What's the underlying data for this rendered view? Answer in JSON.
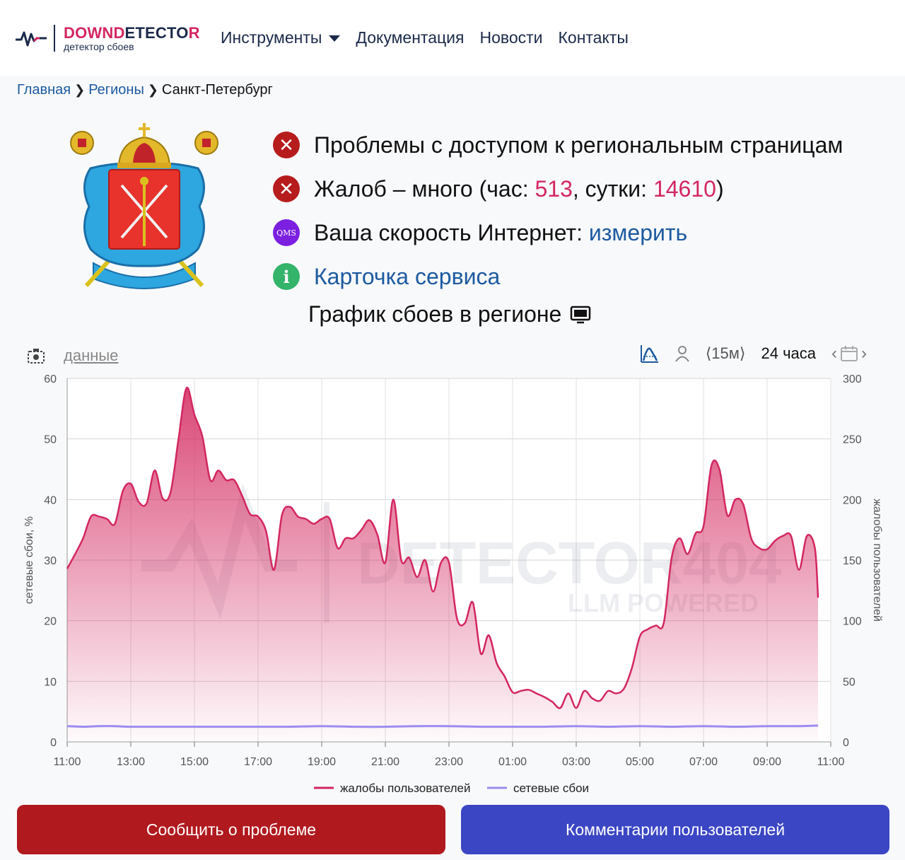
{
  "header": {
    "logo_down": "DOWN",
    "logo_d": "D",
    "logo_etecto": "ETECTO",
    "logo_r": "R",
    "logo_subtitle": "детектор сбоев",
    "nav": [
      "Инструменты",
      "Документация",
      "Новости",
      "Контакты"
    ]
  },
  "breadcrumb": [
    "Главная",
    "Регионы",
    "Санкт-Петербург"
  ],
  "status": {
    "access": "Проблемы с доступом к региональным страницам",
    "complaints_prefix": "Жалоб – много (час: ",
    "complaints_hour": "513",
    "complaints_mid": ", сутки: ",
    "complaints_day": "14610",
    "complaints_suffix": ")",
    "speed_label": "Ваша скорость Интернет: ",
    "speed_link": "измерить",
    "qms": "QMS",
    "info_icon": "i",
    "service_card": "Карточка сервиса"
  },
  "chart_section": {
    "title": "График сбоев в регионе",
    "data_link": "данные",
    "interval": "⟨15м⟩",
    "period": "24 часа"
  },
  "chart_data": {
    "type": "area",
    "x_ticks": [
      "11:00",
      "13:00",
      "15:00",
      "17:00",
      "19:00",
      "21:00",
      "23:00",
      "01:00",
      "03:00",
      "05:00",
      "07:00",
      "09:00",
      "11:00"
    ],
    "y_left_label": "сетевые сбои, %",
    "y_left_ticks": [
      0,
      10,
      20,
      30,
      40,
      50,
      60
    ],
    "y_right_label": "жалобы пользователей",
    "y_right_ticks": [
      0,
      50,
      100,
      150,
      200,
      250,
      300
    ],
    "ylim_left": [
      0,
      60
    ],
    "ylim_right": [
      0,
      300
    ],
    "grid": true,
    "legend_position": "bottom",
    "watermark_line1": "DETECTOR404",
    "watermark_line2": "LLM POWERED",
    "series": [
      {
        "name": "жалобы пользователей",
        "axis": "right",
        "color": "#d3275f",
        "points": [
          [
            0,
            143
          ],
          [
            0.25,
            155
          ],
          [
            0.5,
            168
          ],
          [
            0.75,
            186
          ],
          [
            1,
            186
          ],
          [
            1.25,
            184
          ],
          [
            1.5,
            180
          ],
          [
            1.75,
            207
          ],
          [
            2,
            213
          ],
          [
            2.25,
            198
          ],
          [
            2.5,
            197
          ],
          [
            2.75,
            224
          ],
          [
            3,
            201
          ],
          [
            3.25,
            206
          ],
          [
            3.5,
            250
          ],
          [
            3.75,
            292
          ],
          [
            4,
            270
          ],
          [
            4.25,
            252
          ],
          [
            4.5,
            216
          ],
          [
            4.75,
            224
          ],
          [
            5,
            216
          ],
          [
            5.25,
            216
          ],
          [
            5.5,
            203
          ],
          [
            5.75,
            188
          ],
          [
            6,
            186
          ],
          [
            6.25,
            174
          ],
          [
            6.5,
            142
          ],
          [
            6.75,
            187
          ],
          [
            7,
            194
          ],
          [
            7.25,
            186
          ],
          [
            7.5,
            184
          ],
          [
            7.75,
            180
          ],
          [
            8,
            184
          ],
          [
            8.25,
            184
          ],
          [
            8.5,
            160
          ],
          [
            8.75,
            168
          ],
          [
            9,
            168
          ],
          [
            9.25,
            175
          ],
          [
            9.5,
            183
          ],
          [
            9.75,
            171
          ],
          [
            10,
            148
          ],
          [
            10.25,
            200
          ],
          [
            10.5,
            150
          ],
          [
            10.75,
            152
          ],
          [
            11,
            136
          ],
          [
            11.25,
            150
          ],
          [
            11.5,
            124
          ],
          [
            11.75,
            148
          ],
          [
            12,
            148
          ],
          [
            12.25,
            102
          ],
          [
            12.5,
            98
          ],
          [
            12.75,
            115
          ],
          [
            13,
            73
          ],
          [
            13.25,
            88
          ],
          [
            13.5,
            65
          ],
          [
            13.75,
            54
          ],
          [
            14,
            41
          ],
          [
            14.25,
            42
          ],
          [
            14.5,
            43
          ],
          [
            14.75,
            40
          ],
          [
            15,
            37
          ],
          [
            15.25,
            33
          ],
          [
            15.5,
            28
          ],
          [
            15.75,
            40
          ],
          [
            16,
            28
          ],
          [
            16.25,
            42
          ],
          [
            16.5,
            36
          ],
          [
            16.75,
            34
          ],
          [
            17,
            42
          ],
          [
            17.25,
            40
          ],
          [
            17.5,
            44
          ],
          [
            17.75,
            61
          ],
          [
            18,
            87
          ],
          [
            18.25,
            93
          ],
          [
            18.5,
            96
          ],
          [
            18.75,
            98
          ],
          [
            19,
            152
          ],
          [
            19.25,
            168
          ],
          [
            19.5,
            155
          ],
          [
            19.75,
            172
          ],
          [
            20,
            178
          ],
          [
            20.25,
            228
          ],
          [
            20.5,
            225
          ],
          [
            20.75,
            187
          ],
          [
            21,
            200
          ],
          [
            21.25,
            196
          ],
          [
            21.5,
            168
          ],
          [
            21.75,
            160
          ],
          [
            22,
            159
          ],
          [
            22.25,
            166
          ],
          [
            22.5,
            170
          ],
          [
            22.75,
            170
          ],
          [
            23,
            142
          ],
          [
            23.25,
            170
          ],
          [
            23.5,
            160
          ],
          [
            23.6,
            119
          ]
        ]
      },
      {
        "name": "сетевые сбои",
        "axis": "left",
        "color": "#9c8cf0",
        "points": [
          [
            0,
            2.6
          ],
          [
            0.5,
            2.5
          ],
          [
            1,
            2.6
          ],
          [
            1.5,
            2.6
          ],
          [
            2,
            2.5
          ],
          [
            3,
            2.5
          ],
          [
            4,
            2.5
          ],
          [
            5,
            2.5
          ],
          [
            6,
            2.5
          ],
          [
            7,
            2.5
          ],
          [
            8,
            2.6
          ],
          [
            9,
            2.5
          ],
          [
            10,
            2.5
          ],
          [
            11,
            2.6
          ],
          [
            12,
            2.6
          ],
          [
            13,
            2.5
          ],
          [
            14,
            2.5
          ],
          [
            15,
            2.5
          ],
          [
            16,
            2.6
          ],
          [
            17,
            2.5
          ],
          [
            18,
            2.6
          ],
          [
            19,
            2.5
          ],
          [
            20,
            2.6
          ],
          [
            21,
            2.5
          ],
          [
            22,
            2.6
          ],
          [
            23,
            2.6
          ],
          [
            23.6,
            2.7
          ]
        ]
      }
    ]
  },
  "buttons": {
    "report": "Сообщить о проблеме",
    "comments": "Комментарии пользователей"
  }
}
